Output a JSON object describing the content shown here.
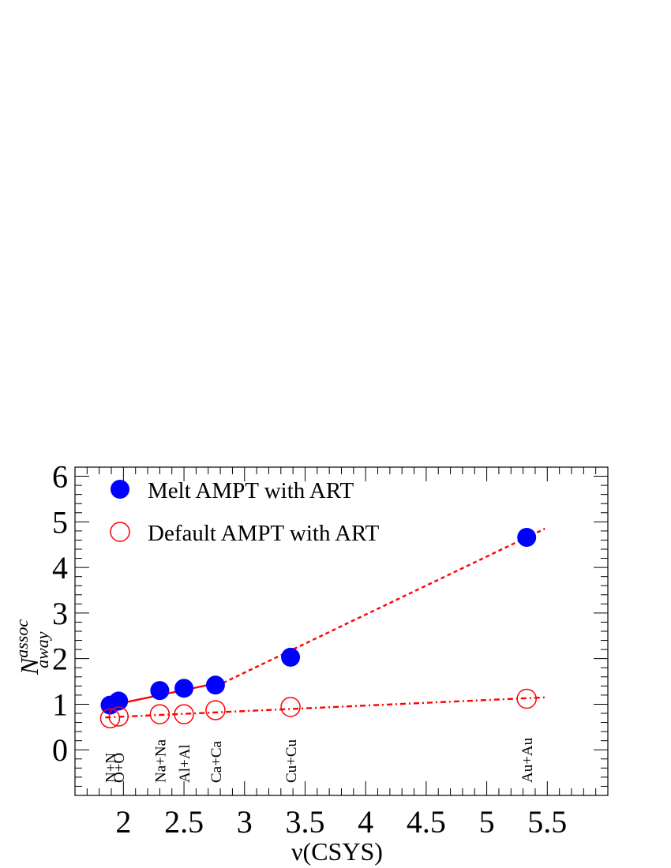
{
  "chart_data": {
    "type": "scatter",
    "xlabel": "ν(CSYS)",
    "ylabel_main": "N",
    "ylabel_sup": "assoc",
    "ylabel_sub": "away",
    "xlim": [
      1.6,
      6.0
    ],
    "ylim": [
      -1,
      6.2
    ],
    "xticks": [
      2,
      2.5,
      3,
      3.5,
      4,
      4.5,
      5,
      5.5
    ],
    "xtick_labels": [
      "2",
      "2.5",
      "3",
      "3.5",
      "4",
      "4.5",
      "5",
      "5.5"
    ],
    "yticks": [
      0,
      1,
      2,
      3,
      4,
      5,
      6
    ],
    "ytick_labels": [
      "0",
      "1",
      "2",
      "3",
      "4",
      "5",
      "6"
    ],
    "grid": false,
    "legend_position": "top-left",
    "series": [
      {
        "name": "Melt AMPT with ART",
        "marker": "filled-circle",
        "color": "#0000ff",
        "x": [
          1.89,
          1.96,
          2.3,
          2.5,
          2.76,
          3.38,
          5.33
        ],
        "y": [
          0.98,
          1.07,
          1.3,
          1.35,
          1.42,
          2.03,
          4.66
        ]
      },
      {
        "name": "Default AMPT with ART",
        "marker": "open-circle",
        "color": "#ff0000",
        "x": [
          1.89,
          1.96,
          2.3,
          2.5,
          2.76,
          3.38,
          5.33
        ],
        "y": [
          0.69,
          0.73,
          0.78,
          0.78,
          0.87,
          0.94,
          1.12
        ]
      }
    ],
    "fit_lines": [
      {
        "style": "solid",
        "color": "#ff0000",
        "x": [
          1.85,
          2.77
        ],
        "y": [
          0.95,
          1.46
        ]
      },
      {
        "style": "dashed",
        "color": "#ff0000",
        "x": [
          2.77,
          5.48
        ],
        "y": [
          1.4,
          4.85
        ]
      },
      {
        "style": "dash-dot",
        "color": "#ff0000",
        "x": [
          1.85,
          5.48
        ],
        "y": [
          0.71,
          1.15
        ]
      }
    ],
    "system_labels": [
      {
        "label": "N+N",
        "x": 1.89
      },
      {
        "label": "O+O",
        "x": 1.96
      },
      {
        "label": "Na+Na",
        "x": 2.3
      },
      {
        "label": "Al+Al",
        "x": 2.5
      },
      {
        "label": "Ca+Ca",
        "x": 2.76
      },
      {
        "label": "Cu+Cu",
        "x": 3.38
      },
      {
        "label": "Au+Au",
        "x": 5.33
      }
    ]
  }
}
